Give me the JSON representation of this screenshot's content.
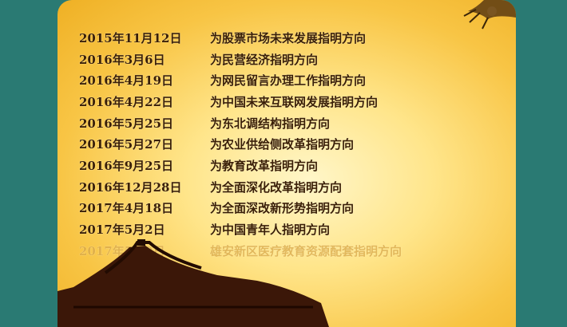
{
  "rows": [
    {
      "date": "2015年11月12日",
      "text": "为股票市场未来发展指明方向"
    },
    {
      "date": "2016年3月6日",
      "text": "为民营经济指明方向"
    },
    {
      "date": "2016年4月19日",
      "text": "为网民留言办理工作指明方向"
    },
    {
      "date": "2016年4月22日",
      "text": "为中国未来互联网发展指明方向"
    },
    {
      "date": "2016年5月25日",
      "text": "为东北调结构指明方向"
    },
    {
      "date": "2016年5月27日",
      "text": "为农业供给侧改革指明方向"
    },
    {
      "date": "2016年9月25日",
      "text": "为教育改革指明方向"
    },
    {
      "date": "2016年12月28日",
      "text": "为全面深化改革指明方向"
    },
    {
      "date": "2017年4月18日",
      "text": "为全面深改新形势指明方向"
    },
    {
      "date": "2017年5月2日",
      "text": "为中国青年人指明方向"
    },
    {
      "date": "2017年5月9日",
      "text": "雄安新区医疗教育资源配套指明方向"
    }
  ],
  "colors": {
    "background": "#2a7a73",
    "text": "#3a1f06",
    "faded": "#d9a94a"
  },
  "icons": {
    "branch": "pine-branch-decoration",
    "palace": "palace-roof-silhouette"
  }
}
